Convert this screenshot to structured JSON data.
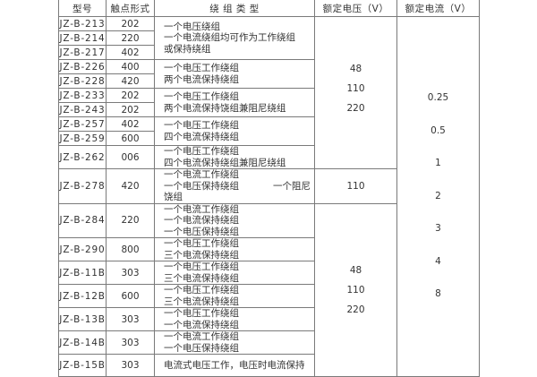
{
  "headers": [
    "型号",
    "触点形式",
    "绕 组 类 型",
    "额定电压（V）",
    "额定电流（V）"
  ],
  "rows": [
    {
      "model": "JZ-B-213",
      "contact": "202"
    },
    {
      "model": "JZ-B-214",
      "contact": "220"
    },
    {
      "model": "JZ-B-217",
      "contact": "402"
    },
    {
      "model": "JZ-B-226",
      "contact": "400"
    },
    {
      "model": "JZ-B-228",
      "contact": "420"
    },
    {
      "model": "JZ-B-233",
      "contact": "202"
    },
    {
      "model": "JZ-B-243",
      "contact": "202"
    },
    {
      "model": "JZ-B-257",
      "contact": "402"
    },
    {
      "model": "JZ-B-259",
      "contact": "600"
    },
    {
      "model": "JZ-B-262",
      "contact": "006"
    },
    {
      "model": "JZ-B-278",
      "contact": "420"
    },
    {
      "model": "JZ-B-284",
      "contact": "220"
    },
    {
      "model": "JZ-B-290",
      "contact": "800"
    },
    {
      "model": "JZ-B-11B",
      "contact": "303"
    },
    {
      "model": "JZ-B-12B",
      "contact": "600"
    },
    {
      "model": "JZ-B-13B",
      "contact": "303"
    },
    {
      "model": "JZ-B-14B",
      "contact": "303"
    },
    {
      "model": "JZ-B-15B",
      "contact": "303"
    }
  ],
  "winding_groups": [
    [
      "一个电压绕组",
      "一个电流绕组均可作为工作绕组",
      "或保持绕组"
    ],
    [
      "一个电压工作绕组",
      "两个电流保持绕组"
    ],
    [
      "一个电压工作绕组",
      "两个电流保持饶组兼阻尼绕组"
    ],
    [
      "一个电压工作绕组",
      "四个电流保持绕组"
    ],
    [
      "一个电压工作绕组",
      "四个电流保持绕组兼阻尼绕组"
    ],
    [
      "一个电流工作绕组",
      "一个电压保持绕组",
      "一个阻尼饶组"
    ],
    [
      "一个电流工作绕组",
      "一个电流保持绕组",
      "一个电压保持绕组"
    ],
    [
      "一个电压工作绕组",
      "三个电流保持绕组"
    ],
    [
      "一个电压工作绕组",
      "三个电流保持绕组"
    ],
    [
      "一个电压工作绕组",
      "三个电流保持绕组"
    ],
    [
      "一个电压工作绕组",
      "一个电流保持绕组"
    ],
    [
      "一个电流工作绕组",
      "一个电压保持绕组"
    ],
    [
      "电流式电压工作，电压时电流保持"
    ]
  ],
  "voltage_groups": [
    [
      "48",
      "110",
      "220"
    ],
    [
      "110"
    ],
    [
      "48",
      "110",
      "220"
    ]
  ],
  "currents": [
    "0.25",
    "0.5",
    "1",
    "2",
    "3",
    "4",
    "8"
  ]
}
